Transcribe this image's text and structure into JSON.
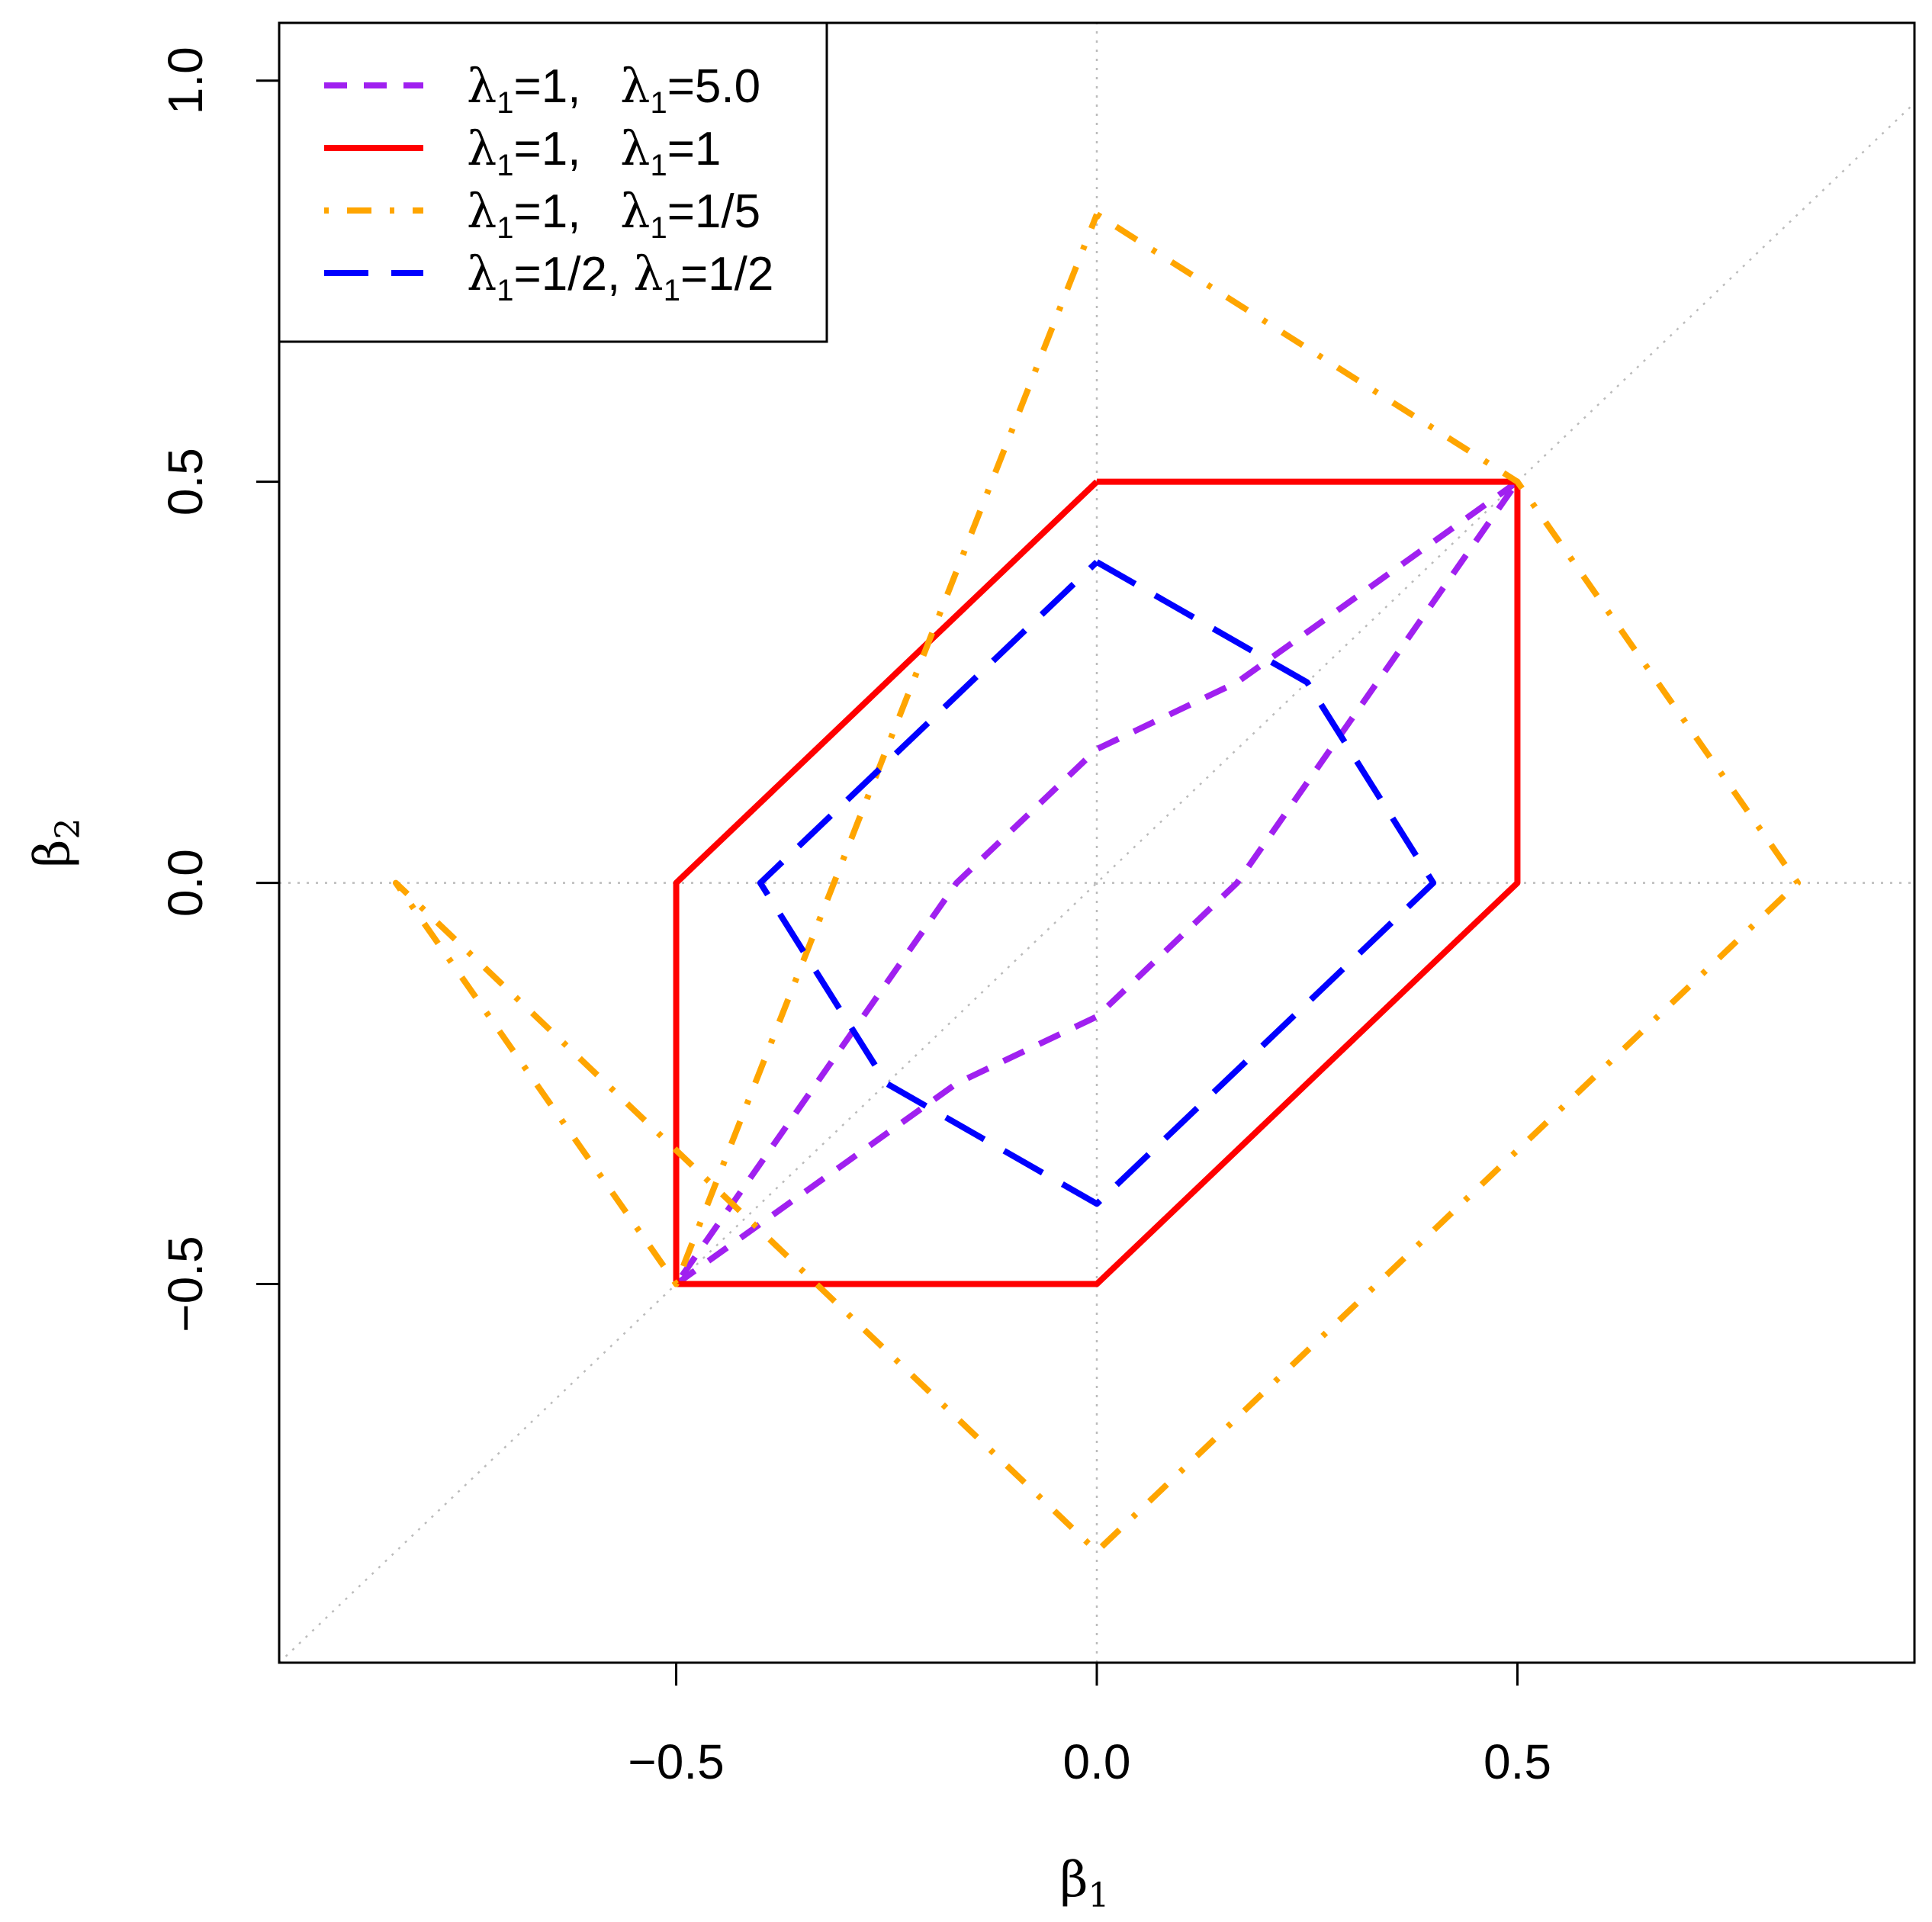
{
  "chart_data": {
    "type": "line",
    "xlabel": "β",
    "xlabel_sub": "1",
    "ylabel": "β",
    "ylabel_sub": "2",
    "xlim": [
      -0.972,
      0.972
    ],
    "ylim": [
      -0.972,
      1.072
    ],
    "x_ticks": [
      {
        "value": -0.5,
        "label": "−0.5"
      },
      {
        "value": 0.0,
        "label": "0.0"
      },
      {
        "value": 0.5,
        "label": "0.5"
      }
    ],
    "y_ticks": [
      {
        "value": -0.5,
        "label": "−0.5"
      },
      {
        "value": 0.0,
        "label": "0.0"
      },
      {
        "value": 0.5,
        "label": "0.5"
      },
      {
        "value": 1.0,
        "label": "1.0"
      }
    ],
    "reference_lines": [
      {
        "name": "zero-x",
        "x": [
          0,
          0
        ],
        "y": [
          -0.972,
          1.072
        ],
        "color": "#bbbbbb"
      },
      {
        "name": "zero-y",
        "x": [
          -0.972,
          0.972
        ],
        "y": [
          0,
          0
        ],
        "color": "#bbbbbb"
      },
      {
        "name": "diagonal",
        "x": [
          -0.972,
          0.972
        ],
        "y": [
          -0.972,
          0.972
        ],
        "color": "#bbbbbb"
      }
    ],
    "legend_position": "top-left",
    "series": [
      {
        "legend": [
          {
            "sym": "λ",
            "sub": "1",
            "val": "=1,   "
          },
          {
            "sym": "λ",
            "sub": "1",
            "val": "=5.0"
          }
        ],
        "color": "#a020f0",
        "style": "dashed-short",
        "x": [
          0.5,
          0.0,
          -0.1667,
          -0.5,
          0.0,
          0.1667,
          0.5,
          0.0,
          -0.5,
          0.5
        ],
        "y": [
          0.5,
          0.1667,
          0.0,
          -0.5,
          -0.1667,
          0.0,
          0.5,
          0.1667,
          -0.5,
          0.5
        ],
        "paths": [
          {
            "x": [
              0.5,
              0.1667,
              0.0,
              -0.1667,
              -0.5
            ],
            "y": [
              0.5,
              0.25,
              0.1667,
              0.0,
              -0.5
            ]
          },
          {
            "x": [
              -0.5,
              -0.1667,
              0.0,
              0.1667,
              0.5
            ],
            "y": [
              -0.5,
              -0.25,
              -0.1667,
              0.0,
              0.5
            ]
          }
        ]
      },
      {
        "legend": [
          {
            "sym": "λ",
            "sub": "1",
            "val": "=1,   "
          },
          {
            "sym": "λ",
            "sub": "1",
            "val": "=1"
          }
        ],
        "color": "#ff0000",
        "style": "solid",
        "paths": [
          {
            "x": [
              0.0,
              0.5,
              0.5,
              0.0,
              -0.5,
              -0.5,
              0.0
            ],
            "y": [
              0.5,
              0.5,
              0.0,
              -0.5,
              -0.5,
              0.0,
              0.5
            ]
          }
        ]
      },
      {
        "legend": [
          {
            "sym": "λ",
            "sub": "1",
            "val": "=1,   "
          },
          {
            "sym": "λ",
            "sub": "1",
            "val": "=1/5"
          }
        ],
        "color": "#ffa500",
        "style": "dotdash",
        "paths": [
          {
            "x": [
              0.0,
              0.5,
              0.8333,
              0.0,
              -0.8333,
              -0.5,
              0.0
            ],
            "y": [
              0.8333,
              0.5,
              0.0,
              -0.8333,
              0.0,
              -0.5,
              0.8333
            ]
          }
        ]
      },
      {
        "legend": [
          {
            "sym": "λ",
            "sub": "1",
            "val": "=1/2, "
          },
          {
            "sym": "λ",
            "sub": "1",
            "val": "=1/2"
          }
        ],
        "color": "#0000ff",
        "style": "dashed-long",
        "paths": [
          {
            "x": [
              0.0,
              0.25,
              0.4,
              0.0,
              -0.25,
              -0.4,
              0.0
            ],
            "y": [
              0.4,
              0.25,
              0.0,
              -0.4,
              -0.25,
              0.0,
              0.4
            ]
          }
        ]
      }
    ]
  }
}
